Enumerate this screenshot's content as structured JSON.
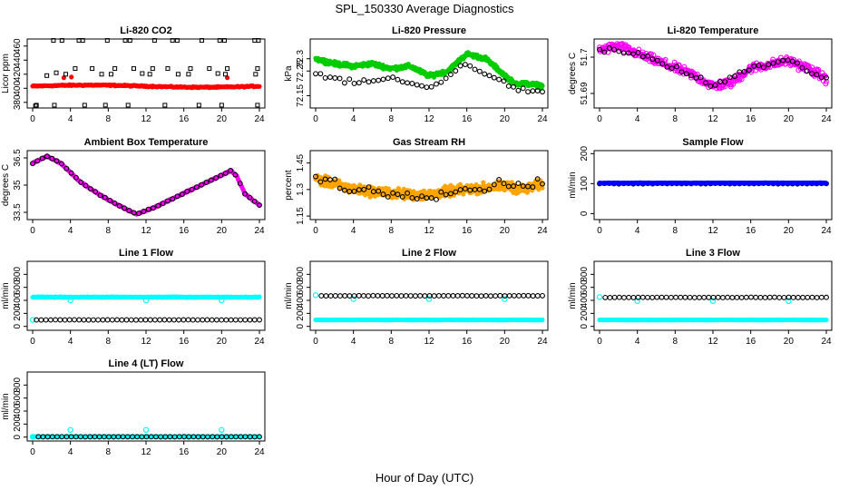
{
  "figure": {
    "title": "SPL_150330  Average Diagnostics",
    "xlabel": "Hour of Day (UTC)"
  },
  "colors": {
    "black": "#000000",
    "red": "#ff0000",
    "green": "#00cc00",
    "magenta": "#ff00ff",
    "orange": "#ffa500",
    "blue": "#0000ff",
    "cyan": "#00ffff"
  },
  "chart_data": [
    {
      "type": "scatter",
      "title": "Li-820 CO2",
      "ylabel": "Licor ppm",
      "xlim": [
        0,
        24
      ],
      "ylim": [
        372,
        470
      ],
      "xticks": [
        0,
        4,
        8,
        12,
        16,
        20,
        24
      ],
      "yticks": [
        380,
        400,
        420,
        440,
        460
      ],
      "series": [
        {
          "color": "red",
          "marker": "dot",
          "x_range": [
            0,
            24
          ],
          "baseline": 403,
          "amplitude": 1.5,
          "noise": 1.2,
          "count": 240,
          "extra": [
            [
              3.3,
              415
            ],
            [
              4.1,
              416
            ],
            [
              20.6,
              415
            ]
          ]
        },
        {
          "color": "black",
          "marker": "square",
          "points": [
            [
              0.3,
              375
            ],
            [
              2.2,
              468
            ],
            [
              3.1,
              468
            ],
            [
              4.9,
              468
            ],
            [
              5.3,
              468
            ],
            [
              7.9,
              468
            ],
            [
              9.8,
              468
            ],
            [
              10.3,
              468
            ],
            [
              12.9,
              468
            ],
            [
              14.8,
              468
            ],
            [
              15.3,
              468
            ],
            [
              17.9,
              468
            ],
            [
              19.8,
              468
            ],
            [
              20.3,
              468
            ],
            [
              23.5,
              468
            ],
            [
              23.9,
              468
            ],
            [
              1.5,
              418
            ],
            [
              2.5,
              422
            ],
            [
              3.5,
              420
            ],
            [
              4.5,
              428
            ],
            [
              6.3,
              428
            ],
            [
              7.3,
              420
            ],
            [
              8.3,
              420
            ],
            [
              8.7,
              428
            ],
            [
              10.7,
              428
            ],
            [
              11.6,
              421
            ],
            [
              12.4,
              420
            ],
            [
              12.7,
              428
            ],
            [
              14.3,
              428
            ],
            [
              15.4,
              420
            ],
            [
              16.5,
              420
            ],
            [
              16.7,
              428
            ],
            [
              18.7,
              428
            ],
            [
              19.6,
              421
            ],
            [
              20.4,
              420
            ],
            [
              20.6,
              428
            ],
            [
              23.6,
              420
            ],
            [
              23.8,
              428
            ],
            [
              0.4,
              376
            ],
            [
              2.3,
              376
            ],
            [
              5.5,
              376
            ],
            [
              7.7,
              376
            ],
            [
              10.1,
              376
            ],
            [
              14.0,
              376
            ],
            [
              17.6,
              376
            ],
            [
              20.0,
              376
            ],
            [
              23.8,
              376
            ]
          ]
        }
      ]
    },
    {
      "type": "scatter",
      "title": "Li-820 Pressure",
      "ylabel": "kPa",
      "xlim": [
        0,
        24
      ],
      "ylim": [
        72.1,
        72.38
      ],
      "xticks": [
        0,
        4,
        8,
        12,
        16,
        20,
        24
      ],
      "yticks": [
        72.15,
        72.25,
        72.3
      ],
      "series": [
        {
          "color": "green",
          "marker": "dot",
          "count": 480,
          "noise": 0.012,
          "x_range": [
            0,
            24
          ],
          "anchors": [
            [
              0,
              72.3
            ],
            [
              2,
              72.28
            ],
            [
              4,
              72.27
            ],
            [
              6,
              72.28
            ],
            [
              8,
              72.26
            ],
            [
              10,
              72.27
            ],
            [
              12,
              72.23
            ],
            [
              14,
              72.25
            ],
            [
              16,
              72.32
            ],
            [
              18,
              72.3
            ],
            [
              19.5,
              72.25
            ],
            [
              21,
              72.2
            ],
            [
              22,
              72.2
            ],
            [
              24,
              72.19
            ]
          ]
        },
        {
          "color": "black",
          "marker": "circle",
          "count": 48,
          "noise": 0.015,
          "x_range": [
            0,
            24
          ],
          "anchors": [
            [
              0,
              72.24
            ],
            [
              4,
              72.2
            ],
            [
              8,
              72.22
            ],
            [
              12,
              72.18
            ],
            [
              16,
              72.28
            ],
            [
              18,
              72.24
            ],
            [
              20,
              72.2
            ],
            [
              22,
              72.17
            ],
            [
              24,
              72.16
            ]
          ]
        }
      ]
    },
    {
      "type": "scatter",
      "title": "Li-820 Temperature",
      "ylabel": "degrees C",
      "xlim": [
        0,
        24
      ],
      "ylim": [
        51.686,
        51.705
      ],
      "xticks": [
        0,
        4,
        8,
        12,
        16,
        20,
        24
      ],
      "yticks": [
        51.69,
        51.7
      ],
      "series": [
        {
          "color": "magenta",
          "marker": "circle",
          "count": 400,
          "noise": 0.0018,
          "x_range": [
            0,
            24
          ],
          "anchors": [
            [
              0,
              51.702
            ],
            [
              2,
              51.703
            ],
            [
              4,
              51.701
            ],
            [
              6,
              51.699
            ],
            [
              8,
              51.697
            ],
            [
              10,
              51.695
            ],
            [
              12,
              51.692
            ],
            [
              14,
              51.693
            ],
            [
              16,
              51.697
            ],
            [
              18,
              51.698
            ],
            [
              20,
              51.699
            ],
            [
              22,
              51.697
            ],
            [
              24,
              51.694
            ]
          ]
        },
        {
          "color": "black",
          "marker": "circle",
          "count": 48,
          "noise": 0.0012,
          "x_range": [
            0,
            24
          ],
          "anchors": [
            [
              0,
              51.702
            ],
            [
              4,
              51.701
            ],
            [
              8,
              51.697
            ],
            [
              12,
              51.692
            ],
            [
              16,
              51.697
            ],
            [
              20,
              51.699
            ],
            [
              24,
              51.694
            ]
          ]
        }
      ]
    },
    {
      "type": "scatter",
      "title": "Ambient Box Temperature",
      "ylabel": "degrees C",
      "xlim": [
        0,
        24
      ],
      "ylim": [
        33.1,
        36.9
      ],
      "xticks": [
        0,
        4,
        8,
        12,
        16,
        20,
        24
      ],
      "yticks": [
        33.5,
        35.0,
        36.5
      ],
      "series": [
        {
          "color": "magenta",
          "marker": "dot",
          "count": 300,
          "noise": 0.04,
          "x_range": [
            0,
            24
          ],
          "anchors": [
            [
              0,
              36.2
            ],
            [
              1.5,
              36.6
            ],
            [
              3,
              36.2
            ],
            [
              5,
              35.2
            ],
            [
              7,
              34.5
            ],
            [
              9,
              33.9
            ],
            [
              11,
              33.4
            ],
            [
              13,
              33.8
            ],
            [
              15,
              34.3
            ],
            [
              17,
              34.8
            ],
            [
              19,
              35.3
            ],
            [
              21,
              35.8
            ],
            [
              21.6,
              35.5
            ],
            [
              22.5,
              34.5
            ],
            [
              24,
              33.9
            ]
          ]
        },
        {
          "color": "black",
          "marker": "circle",
          "count": 48,
          "noise": 0.03,
          "x_range": [
            0,
            24
          ],
          "anchors": [
            [
              0,
              36.2
            ],
            [
              1.5,
              36.6
            ],
            [
              3,
              36.2
            ],
            [
              5,
              35.2
            ],
            [
              7,
              34.5
            ],
            [
              9,
              33.9
            ],
            [
              11,
              33.4
            ],
            [
              13,
              33.8
            ],
            [
              15,
              34.3
            ],
            [
              17,
              34.8
            ],
            [
              19,
              35.3
            ],
            [
              21,
              35.8
            ],
            [
              21.6,
              35.5
            ],
            [
              22.5,
              34.5
            ],
            [
              24,
              33.9
            ]
          ]
        }
      ]
    },
    {
      "type": "scatter",
      "title": "Gas Stream RH",
      "ylabel": "percent",
      "xlim": [
        0,
        24
      ],
      "ylim": [
        1.13,
        1.52
      ],
      "xticks": [
        0,
        4,
        8,
        12,
        16,
        20,
        24
      ],
      "yticks": [
        1.15,
        1.3,
        1.45
      ],
      "series": [
        {
          "color": "orange",
          "marker": "dot",
          "count": 600,
          "noise": 0.04,
          "x_range": [
            0,
            24
          ],
          "anchors": [
            [
              0,
              1.36
            ],
            [
              2,
              1.33
            ],
            [
              4,
              1.3
            ],
            [
              6,
              1.29
            ],
            [
              8,
              1.28
            ],
            [
              10,
              1.27
            ],
            [
              12,
              1.27
            ],
            [
              14,
              1.29
            ],
            [
              16,
              1.3
            ],
            [
              18,
              1.31
            ],
            [
              20,
              1.32
            ],
            [
              22,
              1.3
            ],
            [
              24,
              1.33
            ]
          ]
        },
        {
          "color": "black",
          "marker": "circle",
          "count": 48,
          "noise": 0.04,
          "x_range": [
            0,
            24
          ],
          "anchors": [
            [
              0,
              1.37
            ],
            [
              2,
              1.34
            ],
            [
              4,
              1.3
            ],
            [
              8,
              1.28
            ],
            [
              12,
              1.27
            ],
            [
              16,
              1.3
            ],
            [
              20,
              1.33
            ],
            [
              24,
              1.34
            ]
          ]
        }
      ]
    },
    {
      "type": "scatter",
      "title": "Sample Flow",
      "ylabel": "ml/min",
      "xlim": [
        0,
        24
      ],
      "ylim": [
        -20,
        210
      ],
      "xticks": [
        0,
        4,
        8,
        12,
        16,
        20,
        24
      ],
      "yticks": [
        0,
        100,
        200
      ],
      "series": [
        {
          "color": "black",
          "marker": "circle",
          "count": 48,
          "x_range": [
            0,
            24
          ],
          "baseline": 100,
          "noise": 1.5
        },
        {
          "color": "blue",
          "marker": "dot",
          "count": 300,
          "x_range": [
            0,
            24
          ],
          "baseline": 102,
          "noise": 1.5
        }
      ]
    },
    {
      "type": "scatter",
      "title": "Line 1 Flow",
      "ylabel": "ml/min",
      "xlim": [
        0,
        24
      ],
      "ylim": [
        -60,
        1000
      ],
      "xticks": [
        0,
        4,
        8,
        12,
        16,
        20,
        24
      ],
      "yticks": [
        0,
        200,
        400,
        600,
        800
      ],
      "series": [
        {
          "color": "cyan",
          "marker": "dot",
          "count": 300,
          "x_range": [
            0,
            24
          ],
          "baseline": 450,
          "noise": 8,
          "extra_circles": [
            [
              0,
              100
            ],
            [
              4,
              400
            ],
            [
              12,
              400
            ],
            [
              20,
              400
            ]
          ]
        },
        {
          "color": "black",
          "marker": "circle",
          "count": 48,
          "x_range": [
            0.4,
            24
          ],
          "baseline": 100,
          "noise": 2
        }
      ]
    },
    {
      "type": "scatter",
      "title": "Line 2 Flow",
      "ylabel": "ml/min",
      "xlim": [
        0,
        24
      ],
      "ylim": [
        -60,
        1000
      ],
      "xticks": [
        0,
        4,
        8,
        12,
        16,
        20,
        24
      ],
      "yticks": [
        0,
        200,
        400,
        600,
        800
      ],
      "series": [
        {
          "color": "cyan",
          "marker": "dot",
          "count": 300,
          "x_range": [
            0,
            24
          ],
          "baseline": 100,
          "noise": 3,
          "extra_circles": [
            [
              0,
              480
            ],
            [
              4,
              420
            ],
            [
              12,
              420
            ],
            [
              20,
              420
            ]
          ]
        },
        {
          "color": "black",
          "marker": "circle",
          "count": 48,
          "x_range": [
            0.6,
            24
          ],
          "baseline": 470,
          "noise": 4
        }
      ]
    },
    {
      "type": "scatter",
      "title": "Line 3 Flow",
      "ylabel": "ml/min",
      "xlim": [
        0,
        24
      ],
      "ylim": [
        -60,
        1000
      ],
      "xticks": [
        0,
        4,
        8,
        12,
        16,
        20,
        24
      ],
      "yticks": [
        0,
        200,
        400,
        600,
        800
      ],
      "series": [
        {
          "color": "cyan",
          "marker": "dot",
          "count": 300,
          "x_range": [
            0,
            24
          ],
          "baseline": 100,
          "noise": 3,
          "extra_circles": [
            [
              0,
              450
            ],
            [
              4,
              390
            ],
            [
              12,
              390
            ],
            [
              20,
              390
            ]
          ]
        },
        {
          "color": "black",
          "marker": "circle",
          "count": 48,
          "x_range": [
            0.6,
            24
          ],
          "baseline": 445,
          "noise": 4
        }
      ]
    },
    {
      "type": "scatter",
      "title": "Line 4 (LT) Flow",
      "ylabel": "ml/min",
      "xlim": [
        0,
        24
      ],
      "ylim": [
        -60,
        1000
      ],
      "xticks": [
        0,
        4,
        8,
        12,
        16,
        20,
        24
      ],
      "yticks": [
        0,
        200,
        400,
        600,
        800
      ],
      "series": [
        {
          "color": "cyan",
          "marker": "dot",
          "count": 200,
          "x_range": [
            0,
            24
          ],
          "baseline": 8,
          "noise": 2,
          "extra_circles": [
            [
              0,
              5
            ],
            [
              4,
              110
            ],
            [
              12,
              110
            ],
            [
              20,
              110
            ]
          ]
        },
        {
          "color": "black",
          "marker": "circle",
          "count": 48,
          "x_range": [
            0.6,
            24
          ],
          "baseline": 5,
          "noise": 2
        }
      ]
    }
  ]
}
